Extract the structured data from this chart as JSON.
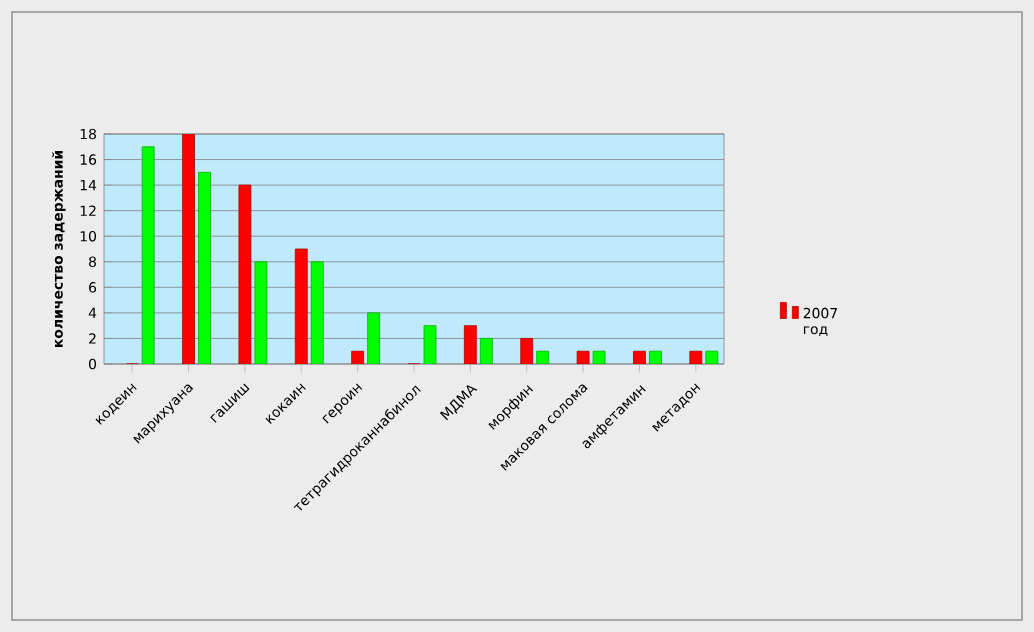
{
  "chart_data": {
    "type": "bar",
    "ylabel": "количество задержаний",
    "categories": [
      "кодеин",
      "марихуана",
      "гашиш",
      "кокаин",
      "героин",
      "тетрагидроканнабинол",
      "МДМА",
      "морфин",
      "маковая солома",
      "амфетамин",
      "метадон"
    ],
    "series": [
      {
        "name": "2007 год",
        "color": "#ff0000",
        "values": [
          0,
          18,
          14,
          9,
          1,
          0,
          3,
          2,
          1,
          1,
          1
        ]
      },
      {
        "color": "#00ff00",
        "values": [
          17,
          15,
          8,
          8,
          4,
          3,
          2,
          1,
          1,
          1,
          1
        ]
      }
    ],
    "ylim": [
      0,
      18
    ],
    "yticks": [
      0,
      2,
      4,
      6,
      8,
      10,
      12,
      14,
      16,
      18
    ],
    "grid": "y",
    "legend": "right"
  }
}
